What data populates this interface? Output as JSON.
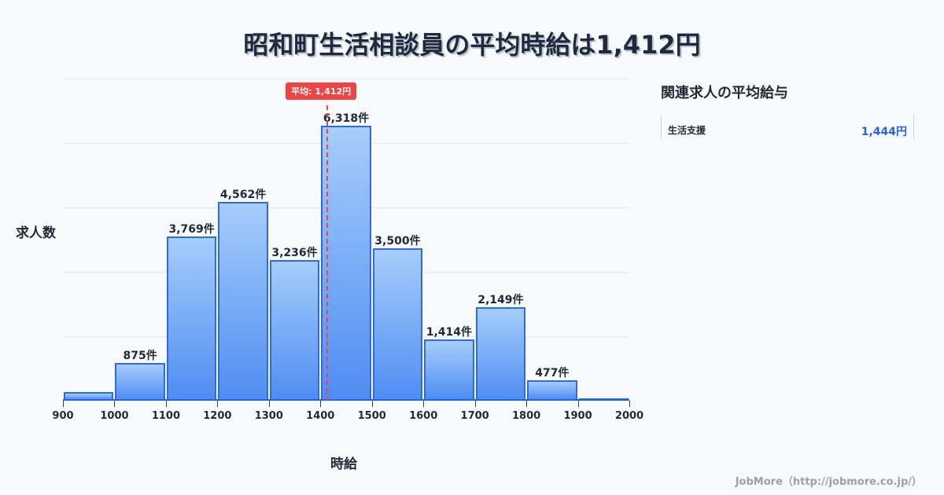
{
  "title": "昭和町生活相談員の平均時給は1,412円",
  "chart_data": {
    "type": "bar",
    "title": "昭和町生活相談員の平均時給は1,412円",
    "xlabel": "時給",
    "ylabel": "求人数",
    "categories": [
      "900-1000",
      "1000-1100",
      "1100-1200",
      "1200-1300",
      "1300-1400",
      "1400-1500",
      "1500-1600",
      "1600-1700",
      "1700-1800",
      "1800-1900",
      "1900-2000"
    ],
    "values": [
      196,
      875,
      3769,
      4562,
      3236,
      6318,
      3500,
      1414,
      2149,
      477,
      50
    ],
    "value_labels": [
      "",
      "875件",
      "3,769件",
      "4,562件",
      "3,236件",
      "6,318件",
      "3,500件",
      "1,414件",
      "2,149件",
      "477件",
      ""
    ],
    "x_ticks": [
      "900",
      "1000",
      "1100",
      "1200",
      "1300",
      "1400",
      "1500",
      "1600",
      "1700",
      "1800",
      "1900",
      "2000"
    ],
    "xlim": [
      900,
      2000
    ],
    "ylim": [
      0,
      7400
    ],
    "grid": true,
    "mean": {
      "value": 1412,
      "label": "平均: 1,412円"
    }
  },
  "side_panel": {
    "title": "関連求人の平均給与",
    "items": [
      {
        "name": "生活支援",
        "value": "1,444円"
      }
    ]
  },
  "footer": "JobMore（http://jobmore.co.jp/）"
}
